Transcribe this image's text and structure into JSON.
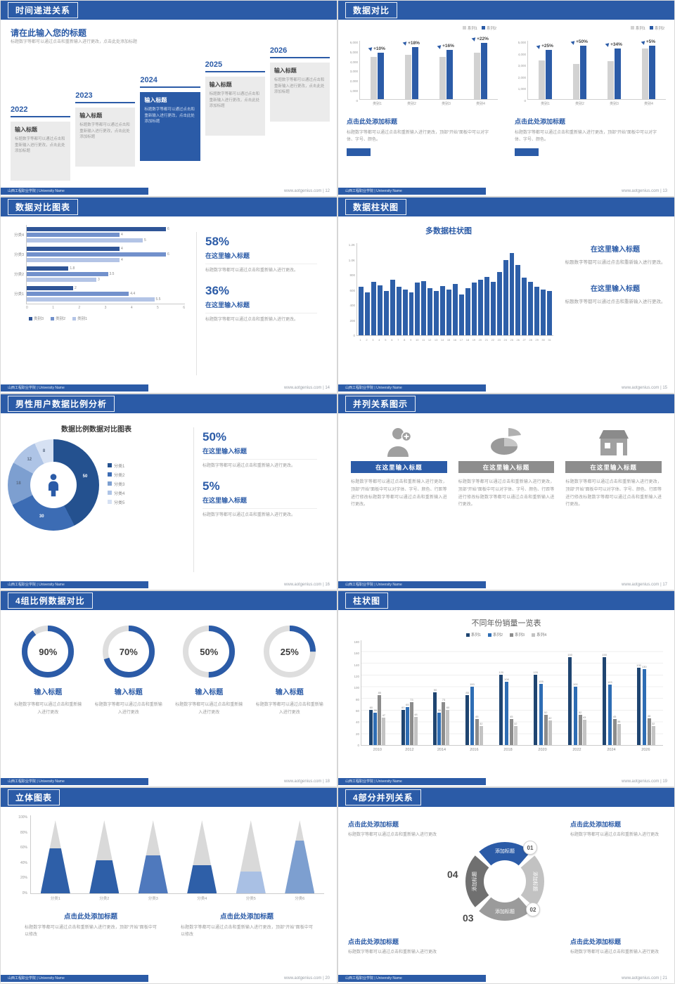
{
  "colors": {
    "accent": "#2b5ba7",
    "gray_bar": "#d2d2d2"
  },
  "footer": {
    "school": "山西工程职业学院 | University Name",
    "site": "www.aotgenius.com"
  },
  "s1": {
    "page": "12",
    "title": "时间递进关系",
    "heading": "请在此输入您的标题",
    "subheading": "标题数字等都可以通过点击和重新输入进行更改，点击此处添加标题",
    "items": [
      {
        "year": "2022",
        "label": "输入标题",
        "text": "标题数字等都可以通过点击和重新输入进行更改，点击此处添加标题"
      },
      {
        "year": "2023",
        "label": "输入标题",
        "text": "标题数字等都可以通过点击和重新输入进行更改，点击此处添加标题"
      },
      {
        "year": "2024",
        "label": "输入标题",
        "text": "标题数字等都可以通过点击和重新输入进行更改，点击此处添加标题"
      },
      {
        "year": "2025",
        "label": "输入标题",
        "text": "标题数字等都可以通过点击和重新输入进行更改，点击此处添加标题"
      },
      {
        "year": "2026",
        "label": "输入标题",
        "text": "标题数字等都可以通过点击和重新输入进行更改，点击此处添加标题"
      }
    ]
  },
  "s2": {
    "page": "13",
    "title": "数据对比",
    "legend": [
      "系列1",
      "系列2"
    ],
    "caption": "点击此处添加标题",
    "body": "标题数字等都可以通过点击和重新输入进行更改，顶部“开始”面板中可以对字体、字号、颜色。",
    "chart_data": [
      {
        "type": "bar",
        "categories": [
          "类别1",
          "类别2",
          "类别3",
          "类别4"
        ],
        "growth_labels": [
          "+10%",
          "+18%",
          "+16%",
          "+22%"
        ],
        "series": [
          {
            "name": "系列1",
            "values": [
              4300,
              4500,
              4300,
              4700
            ]
          },
          {
            "name": "系列2",
            "values": [
              4750,
              5300,
              5000,
              5750
            ]
          }
        ],
        "ylim": [
          0,
          6000
        ],
        "yticks": [
          "6,000",
          "5,000",
          "4,000",
          "3,000",
          "2,000",
          "1,000",
          "0"
        ]
      },
      {
        "type": "bar",
        "categories": [
          "类别1",
          "类别2",
          "类别3",
          "类别4"
        ],
        "growth_labels": [
          "+25%",
          "+50%",
          "+34%",
          "+5%"
        ],
        "series": [
          {
            "name": "系列1",
            "values": [
              3300,
              3000,
              3200,
              4300
            ]
          },
          {
            "name": "系列2",
            "values": [
              4150,
              4500,
              4300,
              4500
            ]
          }
        ],
        "ylim": [
          0,
          5000
        ],
        "yticks": [
          "5,000",
          "4,000",
          "3,000",
          "2,000",
          "1,000",
          "0"
        ]
      }
    ]
  },
  "s3": {
    "page": "14",
    "title": "数据对比图表",
    "legend": [
      "类别3",
      "类别2",
      "类别1"
    ],
    "legend_colors": [
      "#2f5597",
      "#7291cc",
      "#b3c4e6"
    ],
    "chart_data": {
      "type": "bar-horizontal",
      "categories": [
        "分类4",
        "分类3",
        "分类2",
        "分类1"
      ],
      "series": [
        {
          "name": "类别3",
          "values": [
            6,
            4,
            1.8,
            2
          ]
        },
        {
          "name": "类别2",
          "values": [
            4,
            6,
            3.5,
            4.4
          ]
        },
        {
          "name": "类别1",
          "values": [
            5,
            4,
            3,
            5.5
          ]
        }
      ],
      "xlim": [
        0,
        6
      ],
      "xticks": [
        "0",
        "1",
        "2",
        "3",
        "4",
        "5",
        "6"
      ]
    },
    "stats": [
      {
        "pct": "58%",
        "label": "在这里输入标题",
        "text": "标题数字等都可以通过点击和重新输入进行更改。"
      },
      {
        "pct": "36%",
        "label": "在这里输入标题",
        "text": "标题数字等都可以通过点击和重新输入进行更改。"
      }
    ]
  },
  "s4": {
    "page": "15",
    "title": "数据柱状图",
    "chart_title": "多数据柱状图",
    "chart_data": {
      "type": "bar",
      "x": [
        "1",
        "2",
        "3",
        "4",
        "5",
        "6",
        "7",
        "8",
        "9",
        "10",
        "11",
        "12",
        "13",
        "14",
        "15",
        "16",
        "17",
        "18",
        "19",
        "20",
        "21",
        "22",
        "23",
        "24",
        "25",
        "26",
        "27",
        "28",
        "29",
        "30",
        "31"
      ],
      "values": [
        640,
        560,
        700,
        660,
        580,
        730,
        640,
        600,
        560,
        690,
        710,
        620,
        580,
        650,
        600,
        670,
        540,
        620,
        690,
        730,
        770,
        700,
        830,
        990,
        1080,
        920,
        760,
        700,
        640,
        600,
        580
      ],
      "ylim": [
        0,
        1200
      ],
      "yticks": [
        "1.2K",
        "1.0K",
        "800",
        "600",
        "400",
        "200",
        "0"
      ]
    },
    "sections": [
      {
        "label": "在这里输入标题",
        "text": "标题数字等都可以通过点击和重新输入进行更改。"
      },
      {
        "label": "在这里输入标题",
        "text": "标题数字等都可以通过点击和重新输入进行更改。"
      }
    ]
  },
  "s5": {
    "page": "16",
    "title": "男性用户数据比例分析",
    "chart_title": "数据比例数据对比图表",
    "legend": [
      "分类1",
      "分类2",
      "分类3",
      "分类4",
      "分类5"
    ],
    "chart_data": {
      "type": "pie",
      "labels": [
        "分类1",
        "分类2",
        "分类3",
        "分类4",
        "分类5"
      ],
      "values": [
        50,
        30,
        18,
        12,
        8
      ],
      "colors": [
        "#24518f",
        "#3c6cb4",
        "#7d9fd0",
        "#aec4e6",
        "#d6e1f3"
      ]
    },
    "stats": [
      {
        "pct": "50%",
        "label": "在这里输入标题",
        "text": "标题数字等都可以通过点击和重新输入进行更改。"
      },
      {
        "pct": "5%",
        "label": "在这里输入标题",
        "text": "标题数字等都可以通过点击和重新输入进行更改。"
      }
    ]
  },
  "s6": {
    "page": "17",
    "title": "并列关系图示",
    "items": [
      {
        "icon": "nurse-icon",
        "label": "在这里输入标题",
        "text": "标题数字等都可以通过点击和重新输入进行更改，顶部“开始”面板中可以对字体、字号、颜色、行距等进行修改标题数字等都可以通过点击和重新输入进行更改。"
      },
      {
        "icon": "pie-3d-icon",
        "label": "在这里输入标题",
        "text": "标题数字等都可以通过点击和重新输入进行更改，顶部“开始”面板中可以对字体、字号、颜色、行距等进行修改标题数字等都可以通过点击和重新输入进行更改。"
      },
      {
        "icon": "building-icon",
        "label": "在这里输入标题",
        "text": "标题数字等都可以通过点击和重新输入进行更改，顶部“开始”面板中可以对字体、字号、颜色、行距等进行修改标题数字等都可以通过点击和重新输入进行更改。"
      }
    ]
  },
  "s7": {
    "page": "18",
    "title": "4组比例数据对比",
    "items": [
      {
        "pct": "90%",
        "value": 0.9,
        "label": "输入标题",
        "text": "标题数字等都可以通过点击和重新输入进行更改"
      },
      {
        "pct": "70%",
        "value": 0.7,
        "label": "输入标题",
        "text": "标题数字等都可以通过点击和重新输入进行更改"
      },
      {
        "pct": "50%",
        "value": 0.5,
        "label": "输入标题",
        "text": "标题数字等都可以通过点击和重新输入进行更改"
      },
      {
        "pct": "25%",
        "value": 0.25,
        "label": "输入标题",
        "text": "标题数字等都可以通过点击和重新输入进行更改"
      }
    ]
  },
  "s8": {
    "page": "19",
    "title": "柱状图",
    "chart_title": "不同年份销量一览表",
    "chart_data": {
      "type": "bar",
      "categories": [
        "2010",
        "2012",
        "2014",
        "2016",
        "2018",
        "2020",
        "2022",
        "2024",
        "2026"
      ],
      "series": [
        {
          "name": "系列1",
          "color": "#1f4571",
          "values": [
            60,
            60,
            90,
            85,
            120,
            120,
            150,
            150,
            132
          ]
        },
        {
          "name": "系列2",
          "color": "#2e6db4",
          "values": [
            55,
            65,
            55,
            100,
            108,
            105,
            100,
            103,
            130
          ]
        },
        {
          "name": "系列3",
          "color": "#8c8c8c",
          "values": [
            85,
            73,
            73,
            45,
            45,
            52,
            52,
            45,
            46
          ]
        },
        {
          "name": "系列4",
          "color": "#c3c3c3",
          "values": [
            47,
            48,
            60,
            32,
            32,
            42,
            43,
            36,
            32
          ]
        }
      ],
      "ylim": [
        0,
        180
      ],
      "yticks": [
        "180",
        "160",
        "140",
        "120",
        "100",
        "80",
        "60",
        "40",
        "20",
        "0"
      ]
    }
  },
  "s9": {
    "page": "20",
    "title": "立体图表",
    "chart_data": {
      "type": "cone",
      "categories": [
        "分类1",
        "分类2",
        "分类3",
        "分类4",
        "分类5",
        "分类6"
      ],
      "values_pct": [
        62,
        45,
        52,
        38,
        30,
        72
      ],
      "fill_colors": [
        "#2e5fa8",
        "#2e5fa8",
        "#4f79bd",
        "#2e5fa8",
        "#a9c0e4",
        "#7d9fd0"
      ],
      "yticks": [
        "100%",
        "80%",
        "60%",
        "40%",
        "20%",
        "0%"
      ]
    },
    "sections": [
      {
        "title": "点击此处添加标题",
        "text": "标题数字等都可以通过点击和重新输入进行更改，顶部“开始”面板中可以修改"
      },
      {
        "title": "点击此处添加标题",
        "text": "标题数字等都可以通过点击和重新输入进行更改，顶部“开始”面板中可以修改"
      }
    ]
  },
  "s10": {
    "page": "21",
    "title": "4部分并列关系",
    "segments": [
      {
        "num": "01",
        "label": "添加标题",
        "color": "#2b5ba7"
      },
      {
        "num": "02",
        "label": "添加标题",
        "color": "#c2c2c2"
      },
      {
        "num": "03",
        "label": "添加标题",
        "color": "#9b9b9b"
      },
      {
        "num": "04",
        "label": "添加标题",
        "color": "#707070"
      }
    ],
    "blocks": [
      {
        "title": "点击此处添加标题",
        "text": "标题数字等都可以通过点击和重新输入进行更改"
      },
      {
        "title": "点击此处添加标题",
        "text": "标题数字等都可以通过点击和重新输入进行更改"
      },
      {
        "title": "点击此处添加标题",
        "text": "标题数字等都可以通过点击和重新输入进行更改"
      },
      {
        "title": "点击此处添加标题",
        "text": "标题数字等都可以通过点击和重新输入进行更改"
      }
    ]
  }
}
